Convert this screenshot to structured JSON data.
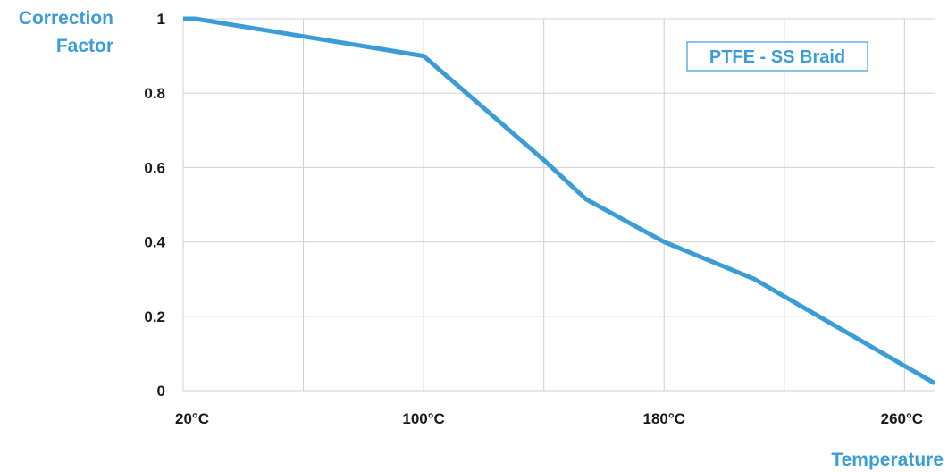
{
  "chart_data": {
    "type": "line",
    "ylabel_lines": [
      "Correction",
      "Factor"
    ],
    "xlabel": "Temperature",
    "x_ticks": [
      {
        "value": 20,
        "label": "20°C"
      },
      {
        "value": 100,
        "label": "100°C"
      },
      {
        "value": 180,
        "label": "180°C"
      },
      {
        "value": 260,
        "label": "260°C"
      }
    ],
    "y_ticks": [
      {
        "value": 0,
        "label": "0"
      },
      {
        "value": 0.2,
        "label": "0.2"
      },
      {
        "value": 0.4,
        "label": "0.4"
      },
      {
        "value": 0.6,
        "label": "0.6"
      },
      {
        "value": 0.8,
        "label": "0.8"
      },
      {
        "value": 1,
        "label": "1"
      }
    ],
    "xlim": [
      20,
      270
    ],
    "ylim": [
      0,
      1
    ],
    "grid_x_values": [
      20,
      60,
      100,
      140,
      180,
      220,
      260
    ],
    "grid_y_values": [
      0,
      0.2,
      0.4,
      0.6,
      0.8,
      1
    ],
    "grid": true,
    "series": [
      {
        "name": "PTFE - SS Braid",
        "x": [
          20,
          24,
          100,
          140,
          154,
          180,
          210,
          270
        ],
        "y": [
          1.0,
          1.0,
          0.9,
          0.62,
          0.515,
          0.4,
          0.3,
          0.02
        ]
      }
    ],
    "legend_position": "top-right"
  },
  "colors": {
    "accent": "#3b9dd6",
    "grid": "#d0d0d0",
    "tick_text": "#1a1a1a"
  }
}
